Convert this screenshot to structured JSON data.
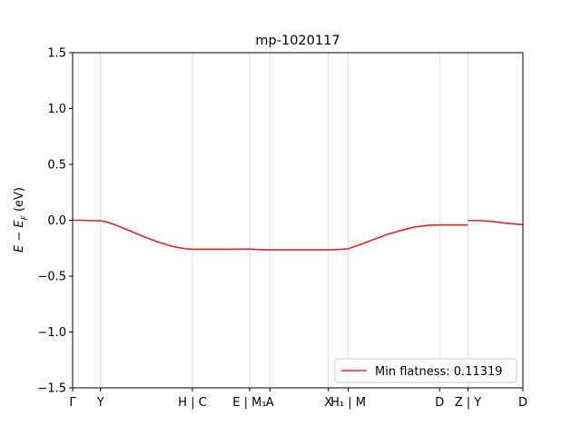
{
  "chart_data": {
    "type": "line",
    "title": "mp-1020117",
    "ylabel": "E − E_F (eV)",
    "xlabel": "",
    "ylim": [
      -1.5,
      1.5
    ],
    "yticks": [
      -1.5,
      -1.0,
      -0.5,
      0.0,
      0.5,
      1.0,
      1.5
    ],
    "ytick_labels": [
      "−1.5",
      "−1.0",
      "−0.5",
      "0.0",
      "0.5",
      "1.0",
      "1.5"
    ],
    "xlim": [
      0,
      1
    ],
    "xticks": [
      {
        "pos": 0.0,
        "label": "Γ"
      },
      {
        "pos": 0.062,
        "label": "Y"
      },
      {
        "pos": 0.266,
        "label": "H | C"
      },
      {
        "pos": 0.393,
        "label": "E | M₁"
      },
      {
        "pos": 0.438,
        "label": "A"
      },
      {
        "pos": 0.568,
        "label": "X"
      },
      {
        "pos": 0.612,
        "label": "H₁ | M"
      },
      {
        "pos": 0.815,
        "label": "D"
      },
      {
        "pos": 0.878,
        "label": "Z | Y"
      },
      {
        "pos": 1.0,
        "label": "D"
      }
    ],
    "series": [
      {
        "name": "Min flatness: 0.11319",
        "color": "#d62728",
        "segments": [
          {
            "x": [
              0.0,
              0.02,
              0.04,
              0.062
            ],
            "y": [
              0.0,
              0.0,
              -0.003,
              -0.005
            ]
          },
          {
            "x": [
              0.062,
              0.08,
              0.1,
              0.13,
              0.16,
              0.19,
              0.22,
              0.25,
              0.266
            ],
            "y": [
              -0.005,
              -0.02,
              -0.05,
              -0.1,
              -0.15,
              -0.195,
              -0.232,
              -0.255,
              -0.26
            ]
          },
          {
            "x": [
              0.266,
              0.3,
              0.35,
              0.393
            ],
            "y": [
              -0.26,
              -0.26,
              -0.26,
              -0.258
            ]
          },
          {
            "x": [
              0.393,
              0.41,
              0.438
            ],
            "y": [
              -0.258,
              -0.262,
              -0.265
            ]
          },
          {
            "x": [
              0.438,
              0.5,
              0.568
            ],
            "y": [
              -0.265,
              -0.265,
              -0.265
            ]
          },
          {
            "x": [
              0.568,
              0.59,
              0.612
            ],
            "y": [
              -0.265,
              -0.262,
              -0.255
            ]
          },
          {
            "x": [
              0.612,
              0.64,
              0.67,
              0.7,
              0.73,
              0.76,
              0.79,
              0.815
            ],
            "y": [
              -0.255,
              -0.215,
              -0.17,
              -0.125,
              -0.09,
              -0.06,
              -0.045,
              -0.042
            ]
          },
          {
            "x": [
              0.815,
              0.85,
              0.878
            ],
            "y": [
              -0.042,
              -0.042,
              -0.042
            ]
          },
          {
            "x": [
              0.878,
              0.9,
              0.93,
              0.96,
              1.0
            ],
            "y": [
              -0.002,
              -0.002,
              -0.01,
              -0.025,
              -0.04
            ]
          }
        ]
      }
    ],
    "legend": {
      "placement": "lower-right",
      "label": "Min flatness: 0.11319"
    },
    "grid": false
  }
}
